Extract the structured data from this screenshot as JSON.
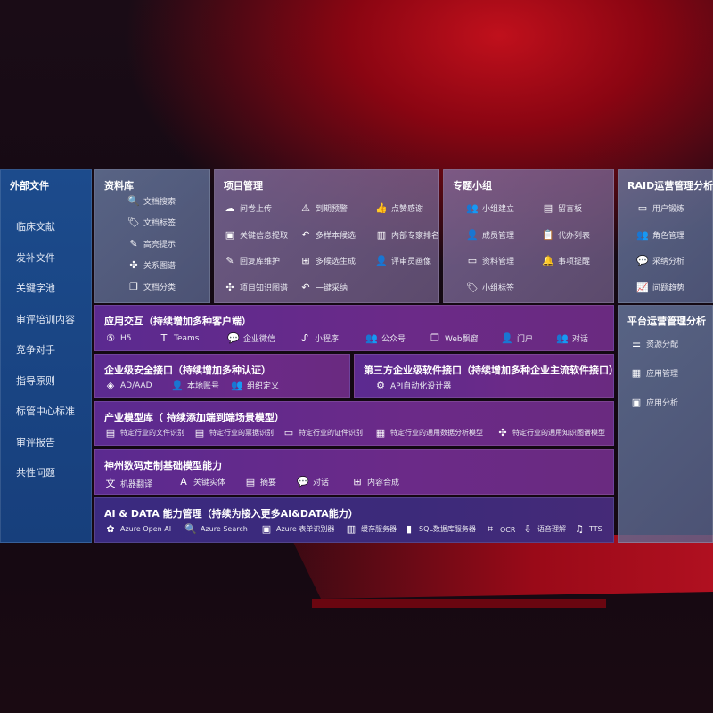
{
  "external": {
    "title": "外部文件",
    "items": [
      "临床文献",
      "发补文件",
      "关键字池",
      "审评培训内容",
      "竞争对手",
      "指导原则",
      "标管中心标准",
      "审评报告",
      "共性问题"
    ]
  },
  "panels": {
    "library": {
      "title": "资料库",
      "items": [
        {
          "label": "文档搜索",
          "icon": "doc-search-icon",
          "g": "🔍"
        },
        {
          "label": "文档标签",
          "icon": "tag-icon",
          "g": "🏷"
        },
        {
          "label": "高亮提示",
          "icon": "pen-icon",
          "g": "✎"
        },
        {
          "label": "关系图谱",
          "icon": "graph-icon",
          "g": "✣"
        },
        {
          "label": "文档分类",
          "icon": "docs-icon",
          "g": "❐"
        }
      ]
    },
    "project": {
      "title": "项目管理",
      "items": [
        {
          "label": "问卷上传",
          "icon": "cloud-upload-icon",
          "g": "☁"
        },
        {
          "label": "到期预警",
          "icon": "alarm-icon",
          "g": "⚠"
        },
        {
          "label": "点赞感谢",
          "icon": "thumbs-up-icon",
          "g": "👍"
        },
        {
          "label": "关键信息提取",
          "icon": "window-icon",
          "g": "▣"
        },
        {
          "label": "多样本候选",
          "icon": "reply-icon",
          "g": "↶"
        },
        {
          "label": "内部专家排名",
          "icon": "ranking-icon",
          "g": "▥"
        },
        {
          "label": "回复库维护",
          "icon": "edit-icon",
          "g": "✎"
        },
        {
          "label": "多候选生成",
          "icon": "puzzle-icon",
          "g": "⊞"
        },
        {
          "label": "评审员画像",
          "icon": "user-icon",
          "g": "👤"
        },
        {
          "label": "项目知识图谱",
          "icon": "network-icon",
          "g": "✣"
        },
        {
          "label": "一键采纳",
          "icon": "reply-icon",
          "g": "↶"
        }
      ]
    },
    "group": {
      "title": "专题小组",
      "items": [
        {
          "label": "小组建立",
          "icon": "group-icon",
          "g": "👥"
        },
        {
          "label": "留言板",
          "icon": "bbs-icon",
          "g": "▤"
        },
        {
          "label": "成员管理",
          "icon": "user-add-icon",
          "g": "👤"
        },
        {
          "label": "代办列表",
          "icon": "clipboard-icon",
          "g": "📋"
        },
        {
          "label": "资料管理",
          "icon": "folder-icon",
          "g": "▭"
        },
        {
          "label": "事项提醒",
          "icon": "bell-icon",
          "g": "🔔"
        },
        {
          "label": "小组标签",
          "icon": "tag-icon",
          "g": "🏷"
        }
      ]
    },
    "raid": {
      "title": "RAID运营管理分析",
      "items": [
        {
          "label": "用户锻炼",
          "icon": "id-card-icon",
          "g": "▭"
        },
        {
          "label": "角色管理",
          "icon": "group-icon",
          "g": "👥"
        },
        {
          "label": "采纳分析",
          "icon": "qa-icon",
          "g": "💬"
        },
        {
          "label": "问题趋势",
          "icon": "trend-icon",
          "g": "📈"
        }
      ]
    },
    "app": {
      "title": "应用交互（持续增加多种客户端）",
      "items": [
        {
          "label": "H5",
          "icon": "html5-icon",
          "g": "⑤"
        },
        {
          "label": "Teams",
          "icon": "teams-icon",
          "g": "T"
        },
        {
          "label": "企业微信",
          "icon": "wechat-icon",
          "g": "💬"
        },
        {
          "label": "小程序",
          "icon": "miniprogram-icon",
          "g": "ᔑ"
        },
        {
          "label": "公众号",
          "icon": "public-account-icon",
          "g": "👥"
        },
        {
          "label": "Web飘窗",
          "icon": "window-icon",
          "g": "❐"
        },
        {
          "label": "门户",
          "icon": "portal-icon",
          "g": "👤"
        },
        {
          "label": "对话",
          "icon": "chat-icon",
          "g": "👥"
        }
      ]
    },
    "security": {
      "title": "企业级安全接口（持续增加多种认证）",
      "items": [
        {
          "label": "AD/AAD",
          "icon": "ad-icon",
          "g": "◈"
        },
        {
          "label": "本地账号",
          "icon": "account-icon",
          "g": "👤"
        },
        {
          "label": "组织定义",
          "icon": "org-icon",
          "g": "👥"
        }
      ]
    },
    "thirdparty": {
      "title": "第三方企业级软件接口（持续增加多种企业主流软件接口）",
      "items": [
        {
          "label": "API自动化设计器",
          "icon": "api-gear-icon",
          "g": "⚙"
        }
      ]
    },
    "industry": {
      "title": "产业模型库（ 持续添加端到端场景模型）",
      "items": [
        {
          "label": "特定行业的文件识别",
          "icon": "file-icon",
          "g": "▤"
        },
        {
          "label": "特定行业的票据识别",
          "icon": "receipt-icon",
          "g": "▤"
        },
        {
          "label": "特定行业的证件识别",
          "icon": "id-card-icon",
          "g": "▭"
        },
        {
          "label": "特定行业的通用数据分析模型",
          "icon": "chart-icon",
          "g": "▦"
        },
        {
          "label": "特定行业的通用知识图谱模型",
          "icon": "network-icon",
          "g": "✣"
        }
      ]
    },
    "base": {
      "title": "神州数码定制基础模型能力",
      "items": [
        {
          "label": "机器翻译",
          "icon": "translate-icon",
          "g": "文"
        },
        {
          "label": "关键实体",
          "icon": "entity-icon",
          "g": "A"
        },
        {
          "label": "摘要",
          "icon": "summary-icon",
          "g": "▤"
        },
        {
          "label": "对话",
          "icon": "chat-icon",
          "g": "💬"
        },
        {
          "label": "内容合成",
          "icon": "compose-icon",
          "g": "⊞"
        }
      ]
    },
    "ai": {
      "title": "AI & DATA 能力管理（持续为接入更多AI&DATA能力）",
      "items": [
        {
          "label": "Azure Open AI",
          "icon": "openai-icon",
          "g": "✿"
        },
        {
          "label": "Azure Search",
          "icon": "search-icon",
          "g": "🔍"
        },
        {
          "label": "Azure 表单识别器",
          "icon": "form-icon",
          "g": "▣"
        },
        {
          "label": "缓存服务器",
          "icon": "cache-icon",
          "g": "▥"
        },
        {
          "label": "SQL数据库服务器",
          "icon": "database-icon",
          "g": "▮"
        },
        {
          "label": "OCR",
          "icon": "ocr-icon",
          "g": "⌗"
        },
        {
          "label": "语音理解",
          "icon": "speech-icon",
          "g": "⇩"
        },
        {
          "label": "TTS",
          "icon": "tts-icon",
          "g": "♫"
        }
      ]
    },
    "platform": {
      "title": "平台运营管理分析",
      "items": [
        {
          "label": "资源分配",
          "icon": "list-icon",
          "g": "☰"
        },
        {
          "label": "应用管理",
          "icon": "apps-icon",
          "g": "▦"
        },
        {
          "label": "应用分析",
          "icon": "analytics-icon",
          "g": "▣"
        }
      ]
    }
  }
}
